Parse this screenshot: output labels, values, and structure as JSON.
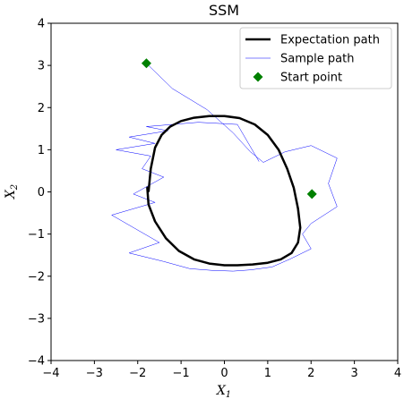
{
  "chart_data": {
    "type": "line",
    "title": "SSM",
    "xlabel": "X",
    "xlabel_sub": "1",
    "ylabel": "X",
    "ylabel_sub": "2",
    "xlim": [
      -4,
      4
    ],
    "ylim": [
      -4,
      4
    ],
    "xticks": [
      -4,
      -3,
      -2,
      -1,
      0,
      1,
      2,
      3,
      4
    ],
    "yticks": [
      -4,
      -3,
      -2,
      -1,
      0,
      1,
      2,
      3,
      4
    ],
    "xtick_labels": [
      "−4",
      "−3",
      "−2",
      "−1",
      "0",
      "1",
      "2",
      "3",
      "4"
    ],
    "ytick_labels": [
      "−4",
      "−3",
      "−2",
      "−1",
      "0",
      "1",
      "2",
      "3",
      "4"
    ],
    "grid": false,
    "legend_position": "top-right",
    "series": [
      {
        "name": "Expectation path",
        "color": "#000000",
        "x": [
          -1.75,
          -1.7,
          -1.6,
          -1.45,
          -1.25,
          -1.0,
          -0.7,
          -0.35,
          0.0,
          0.35,
          0.7,
          1.0,
          1.25,
          1.45,
          1.6,
          1.7,
          1.75,
          1.7,
          1.55,
          1.3,
          1.0,
          0.65,
          0.3,
          0.0,
          -0.35,
          -0.7,
          -1.05,
          -1.35,
          -1.6,
          -1.75,
          -1.78,
          -1.75
        ],
        "y": [
          0.0,
          0.55,
          1.05,
          1.35,
          1.55,
          1.68,
          1.76,
          1.8,
          1.8,
          1.75,
          1.6,
          1.35,
          1.0,
          0.55,
          0.1,
          -0.4,
          -0.85,
          -1.2,
          -1.45,
          -1.6,
          -1.68,
          -1.72,
          -1.74,
          -1.74,
          -1.7,
          -1.6,
          -1.4,
          -1.1,
          -0.7,
          -0.3,
          0.1,
          0.0
        ]
      },
      {
        "name": "Sample path",
        "color": "#0000ff",
        "x": [
          -1.8,
          -1.2,
          -0.4,
          0.2,
          0.6,
          0.9,
          1.4,
          2.0,
          2.6,
          2.4,
          2.6,
          2.0,
          1.8,
          2.0,
          1.5,
          1.1,
          0.6,
          0.2,
          -0.3,
          -0.8,
          -1.4,
          -2.2,
          -1.5,
          -2.6,
          -1.6,
          -2.1,
          -1.4,
          -1.9,
          -1.7,
          -2.5,
          -1.6,
          -2.2,
          -1.3,
          -1.8,
          -0.6,
          0.3,
          0.8
        ],
        "y": [
          3.05,
          2.45,
          1.95,
          1.4,
          0.95,
          0.7,
          0.95,
          1.1,
          0.8,
          0.2,
          -0.35,
          -0.75,
          -1.0,
          -1.35,
          -1.6,
          -1.78,
          -1.85,
          -1.88,
          -1.86,
          -1.82,
          -1.65,
          -1.45,
          -1.2,
          -0.55,
          -0.25,
          -0.05,
          0.35,
          0.55,
          0.85,
          1.0,
          1.15,
          1.3,
          1.45,
          1.55,
          1.65,
          1.6,
          0.72
        ]
      },
      {
        "name": "Start point",
        "color": "#008000",
        "marker": "diamond",
        "x": [
          -1.8,
          2.02
        ],
        "y": [
          3.05,
          -0.05
        ]
      }
    ]
  }
}
